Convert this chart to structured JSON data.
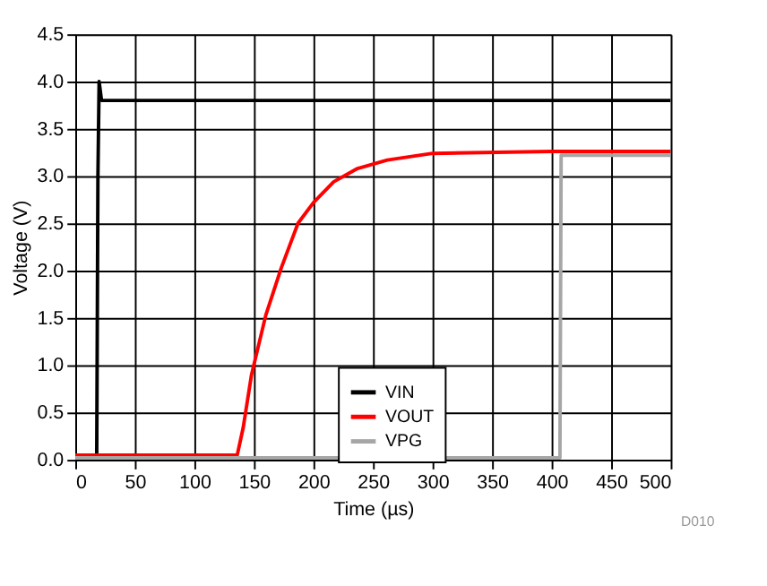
{
  "chart_data": {
    "type": "line",
    "xlabel": "Time (µs)",
    "ylabel": "Voltage (V)",
    "xlim": [
      0,
      500
    ],
    "xticks": [
      0,
      50,
      100,
      150,
      200,
      250,
      300,
      350,
      400,
      450,
      500
    ],
    "ylim": [
      0,
      4.5
    ],
    "yticks": [
      {
        "value": 0,
        "label": "0.0"
      },
      0.5,
      {
        "value": 1,
        "label": "1.0"
      },
      1.5,
      {
        "value": 2,
        "label": "2.0"
      },
      2.5,
      {
        "value": 3,
        "label": "3.0"
      },
      3.5,
      {
        "value": 4,
        "label": "4.0"
      },
      4.5
    ],
    "grid": true,
    "legend": "bottom",
    "line_style": "solid",
    "marker": "none",
    "annotations": [
      "D010"
    ],
    "series": [
      {
        "name": "VIN",
        "color": "#000000",
        "x": [
          0,
          18,
          19,
          20,
          21,
          22,
          500
        ],
        "values": [
          0.05,
          0.05,
          3.0,
          4.0,
          3.9,
          3.8,
          3.8
        ]
      },
      {
        "name": "VOUT",
        "color": "#ff0000",
        "x": [
          0,
          100,
          136,
          141,
          148,
          160,
          173,
          187,
          200,
          217,
          237,
          262,
          300,
          400,
          500
        ],
        "values": [
          0.05,
          0.05,
          0.05,
          0.34,
          0.9,
          1.53,
          2.03,
          2.5,
          2.72,
          2.94,
          3.08,
          3.17,
          3.24,
          3.26,
          3.26
        ]
      },
      {
        "name": "VPG",
        "color": "#a6a6a6",
        "x": [
          0,
          407,
          408,
          500
        ],
        "values": [
          0.02,
          0.02,
          3.22,
          3.22
        ]
      }
    ]
  }
}
